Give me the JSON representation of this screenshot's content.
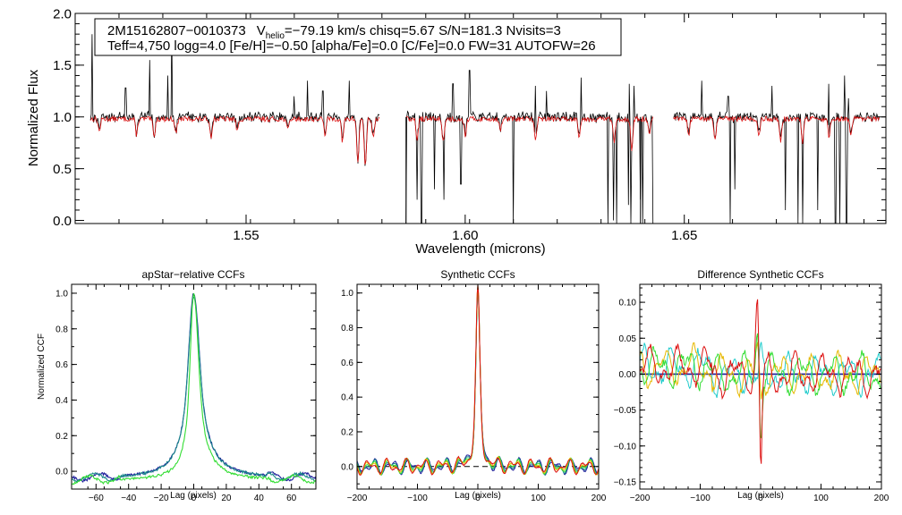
{
  "chart_data": [
    {
      "type": "line",
      "name": "spectrum",
      "xlabel": "Wavelength (microns)",
      "ylabel": "Normalized Flux",
      "xlim": [
        1.511,
        1.696
      ],
      "ylim": [
        -0.03,
        2.0
      ],
      "xticks": [
        {
          "value": 1.55,
          "label": "1.55"
        },
        {
          "value": 1.6,
          "label": "1.60"
        },
        {
          "value": 1.65,
          "label": "1.65"
        }
      ],
      "yticks": [
        {
          "value": 0.0,
          "label": "0.0"
        },
        {
          "value": 0.5,
          "label": "0.5"
        },
        {
          "value": 1.0,
          "label": "1.0"
        },
        {
          "value": 1.5,
          "label": "1.5"
        },
        {
          "value": 2.0,
          "label": "2.0"
        }
      ],
      "annotation": {
        "star_id": "2M15162807−0010373",
        "v_label": "V",
        "v_sub": "helio",
        "v_value": "=−79.19 km/s  chisq=5.67  S/N=181.3  Nvisits=3",
        "line2": "Teff=4,750 logg=4.0 [Fe/H]=−0.50 [alpha/Fe]=0.0 [C/Fe]=0.0 FW=31 AUTOFW=26"
      },
      "chips": [
        [
          1.5145,
          1.5805
        ],
        [
          1.5865,
          1.643
        ],
        [
          1.6475,
          1.6945
        ]
      ],
      "continuum": 1.0,
      "series": [
        {
          "name": "observed",
          "color": "#000000"
        },
        {
          "name": "model",
          "color": "#dd1111"
        }
      ],
      "model_absorption_lines": [
        {
          "x": 1.5165,
          "depth": 0.12
        },
        {
          "x": 1.525,
          "depth": 0.15
        },
        {
          "x": 1.529,
          "depth": 0.18
        },
        {
          "x": 1.534,
          "depth": 0.14
        },
        {
          "x": 1.542,
          "depth": 0.17
        },
        {
          "x": 1.548,
          "depth": 0.12
        },
        {
          "x": 1.5595,
          "depth": 0.11
        },
        {
          "x": 1.568,
          "depth": 0.15
        },
        {
          "x": 1.572,
          "depth": 0.22
        },
        {
          "x": 1.5755,
          "depth": 0.42
        },
        {
          "x": 1.5772,
          "depth": 0.45
        },
        {
          "x": 1.579,
          "depth": 0.18
        },
        {
          "x": 1.589,
          "depth": 0.2
        },
        {
          "x": 1.595,
          "depth": 0.22
        },
        {
          "x": 1.6,
          "depth": 0.16
        },
        {
          "x": 1.608,
          "depth": 0.12
        },
        {
          "x": 1.616,
          "depth": 0.2
        },
        {
          "x": 1.626,
          "depth": 0.16
        },
        {
          "x": 1.634,
          "depth": 0.24
        },
        {
          "x": 1.638,
          "depth": 0.32
        },
        {
          "x": 1.642,
          "depth": 0.15
        },
        {
          "x": 1.651,
          "depth": 0.16
        },
        {
          "x": 1.657,
          "depth": 0.2
        },
        {
          "x": 1.667,
          "depth": 0.18
        },
        {
          "x": 1.672,
          "depth": 0.22
        },
        {
          "x": 1.677,
          "depth": 0.22
        },
        {
          "x": 1.683,
          "depth": 0.18
        },
        {
          "x": 1.688,
          "depth": 0.16
        }
      ],
      "observed_spikes": [
        {
          "x": 1.5148,
          "y": 1.8
        },
        {
          "x": 1.5225,
          "y": 1.28
        },
        {
          "x": 1.528,
          "y": 1.55
        },
        {
          "x": 1.5322,
          "y": 1.4
        },
        {
          "x": 1.533,
          "y": 1.9
        },
        {
          "x": 1.561,
          "y": 1.2
        },
        {
          "x": 1.564,
          "y": 1.35
        },
        {
          "x": 1.5675,
          "y": 1.25
        },
        {
          "x": 1.5735,
          "y": 1.35
        },
        {
          "x": 1.5812,
          "y": 1.3
        },
        {
          "x": 1.593,
          "y": 1.25
        },
        {
          "x": 1.5972,
          "y": 1.32
        },
        {
          "x": 1.601,
          "y": 1.45
        },
        {
          "x": 1.611,
          "y": 1.22
        },
        {
          "x": 1.616,
          "y": 1.3
        },
        {
          "x": 1.6185,
          "y": 1.25
        },
        {
          "x": 1.6265,
          "y": 1.38
        },
        {
          "x": 1.6375,
          "y": 1.32
        },
        {
          "x": 1.6385,
          "y": 1.3
        },
        {
          "x": 1.64,
          "y": 2.0
        },
        {
          "x": 1.654,
          "y": 1.35
        },
        {
          "x": 1.66,
          "y": 1.2
        },
        {
          "x": 1.67,
          "y": 1.3
        },
        {
          "x": 1.683,
          "y": 1.32
        },
        {
          "x": 1.6865,
          "y": 1.4
        },
        {
          "x": 1.6875,
          "y": 1.18
        }
      ],
      "observed_dropouts": [
        {
          "x": 1.5865,
          "y": -0.03
        },
        {
          "x": 1.589,
          "y": 0.2
        },
        {
          "x": 1.59,
          "y": -0.03
        },
        {
          "x": 1.593,
          "y": 0.3
        },
        {
          "x": 1.5952,
          "y": 0.2
        },
        {
          "x": 1.599,
          "y": 0.35
        },
        {
          "x": 1.611,
          "y": -0.03
        },
        {
          "x": 1.6326,
          "y": -0.03
        },
        {
          "x": 1.6338,
          "y": 0.0
        },
        {
          "x": 1.6345,
          "y": -0.03
        },
        {
          "x": 1.6372,
          "y": 0.15
        },
        {
          "x": 1.6378,
          "y": -0.03
        },
        {
          "x": 1.64,
          "y": 0.2
        },
        {
          "x": 1.6405,
          "y": -0.03
        },
        {
          "x": 1.6428,
          "y": -0.03
        },
        {
          "x": 1.6605,
          "y": -0.03
        },
        {
          "x": 1.6615,
          "y": 0.3
        },
        {
          "x": 1.673,
          "y": 0.1
        },
        {
          "x": 1.676,
          "y": -0.03
        },
        {
          "x": 1.677,
          "y": -0.03
        },
        {
          "x": 1.6805,
          "y": 0.1
        },
        {
          "x": 1.6845,
          "y": -0.03
        },
        {
          "x": 1.6855,
          "y": -0.03
        },
        {
          "x": 1.687,
          "y": -0.03
        }
      ]
    },
    {
      "type": "line",
      "name": "apstar-ccf",
      "title": "apStar−relative CCFs",
      "xlabel": "Lag (pixels)",
      "ylabel": "Normalized CCF",
      "xlim": [
        -75,
        75
      ],
      "ylim": [
        -0.1,
        1.05
      ],
      "xticks": [
        {
          "value": -60,
          "label": "−60"
        },
        {
          "value": -40,
          "label": "−40"
        },
        {
          "value": -20,
          "label": "−20"
        },
        {
          "value": 0,
          "label": "0"
        },
        {
          "value": 20,
          "label": "20"
        },
        {
          "value": 40,
          "label": "40"
        },
        {
          "value": 60,
          "label": "60"
        }
      ],
      "yticks": [
        {
          "value": 0.0,
          "label": "0.0"
        },
        {
          "value": 0.2,
          "label": "0.2"
        },
        {
          "value": 0.4,
          "label": "0.4"
        },
        {
          "value": 0.6,
          "label": "0.6"
        },
        {
          "value": 0.8,
          "label": "0.8"
        },
        {
          "value": 1.0,
          "label": "1.0"
        }
      ],
      "series": [
        {
          "name": "visit 1",
          "color": "#1b1b9a",
          "width_lo": 9,
          "width_hi": 10,
          "base": -0.04,
          "peak": 1.0
        },
        {
          "name": "visit 2",
          "color": "#1a8a8a",
          "width_lo": 9,
          "width_hi": 10,
          "base": -0.04,
          "peak": 0.98
        },
        {
          "name": "visit 3",
          "color": "#33dd33",
          "width_lo": 6,
          "width_hi": 8,
          "base": -0.05,
          "peak": 1.0
        }
      ]
    },
    {
      "type": "line",
      "name": "synthetic-ccf",
      "title": "Synthetic CCFs",
      "xlabel": "Lag (pixels)",
      "ylabel": "",
      "xlim": [
        -200,
        200
      ],
      "ylim": [
        -0.13,
        1.05
      ],
      "xticks": [
        {
          "value": -200,
          "label": "−200"
        },
        {
          "value": -100,
          "label": "−100"
        },
        {
          "value": 0,
          "label": "0"
        },
        {
          "value": 100,
          "label": "100"
        },
        {
          "value": 200,
          "label": "200"
        }
      ],
      "yticks": [
        {
          "value": 0.0,
          "label": "0.0"
        },
        {
          "value": 0.2,
          "label": "0.2"
        },
        {
          "value": 0.4,
          "label": "0.4"
        },
        {
          "value": 0.6,
          "label": "0.6"
        },
        {
          "value": 0.8,
          "label": "0.8"
        },
        {
          "value": 1.0,
          "label": "1.0"
        }
      ],
      "reference_line": 0.0,
      "series": [
        {
          "name": "visit 1",
          "color": "#1b1b9a",
          "peak": 1.0
        },
        {
          "name": "visit 2",
          "color": "#1a8a8a",
          "peak": 0.99
        },
        {
          "name": "visit 3",
          "color": "#33dd33",
          "peak": 0.98
        },
        {
          "name": "visit 4",
          "color": "#e6b800",
          "peak": 1.0
        },
        {
          "name": "visit 5",
          "color": "#dd1111",
          "peak": 1.0
        }
      ]
    },
    {
      "type": "line",
      "name": "difference-ccf",
      "title": "Difference Synthetic CCFs",
      "xlabel": "Lag (pixels)",
      "ylabel": "",
      "xlim": [
        -200,
        200
      ],
      "ylim": [
        -0.16,
        0.125
      ],
      "xticks": [
        {
          "value": -200,
          "label": "−200"
        },
        {
          "value": -100,
          "label": "−100"
        },
        {
          "value": 0,
          "label": "0"
        },
        {
          "value": 100,
          "label": "100"
        },
        {
          "value": 200,
          "label": "200"
        }
      ],
      "yticks": [
        {
          "value": -0.15,
          "label": "−0.15"
        },
        {
          "value": -0.1,
          "label": "−0.10"
        },
        {
          "value": -0.05,
          "label": "−0.05"
        },
        {
          "value": 0.0,
          "label": "0.00"
        },
        {
          "value": 0.05,
          "label": "0.05"
        },
        {
          "value": 0.1,
          "label": "0.10"
        }
      ],
      "series": [
        {
          "name": "visit 1",
          "color": "#1b1b9a",
          "amp": 0.0
        },
        {
          "name": "visit 2",
          "color": "#22cccc",
          "amp": 0.02
        },
        {
          "name": "visit 3",
          "color": "#e6b800",
          "amp": -0.04
        },
        {
          "name": "visit 4",
          "color": "#33dd33",
          "amp": -0.09
        },
        {
          "name": "visit 5",
          "color": "#dd1111",
          "amp": -0.15
        }
      ]
    }
  ]
}
